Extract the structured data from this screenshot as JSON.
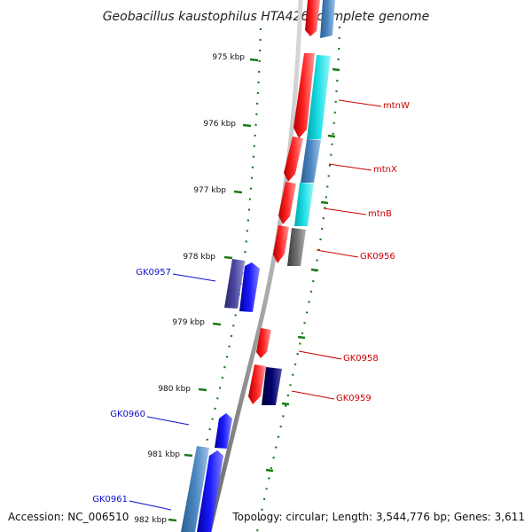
{
  "title": "Geobacillus kaustophilus HTA426, complete genome",
  "accession": "Accession: NC_006510",
  "topology": "Topology: circular; Length: 3,544,776 bp; Genes: 3,611",
  "colors": {
    "forward_gene": "#ff0000",
    "reverse_gene": "#0000ff",
    "tick": "#1a7a1a",
    "red_label": "#cc0000",
    "blue_label": "#1010cc"
  },
  "kbp_ticks": [
    {
      "label": "975 kbp"
    },
    {
      "label": "976 kbp"
    },
    {
      "label": "977 kbp"
    },
    {
      "label": "978 kbp"
    },
    {
      "label": "979 kbp"
    },
    {
      "label": "980 kbp"
    },
    {
      "label": "981 kbp"
    },
    {
      "label": "982 kbp"
    }
  ],
  "gene_labels": [
    {
      "text": "mtnW",
      "strand": "forward"
    },
    {
      "text": "mtnX",
      "strand": "forward"
    },
    {
      "text": "mtnB",
      "strand": "forward"
    },
    {
      "text": "GK0956",
      "strand": "forward"
    },
    {
      "text": "GK0957",
      "strand": "reverse"
    },
    {
      "text": "GK0958",
      "strand": "forward"
    },
    {
      "text": "GK0959",
      "strand": "forward"
    },
    {
      "text": "GK0960",
      "strand": "reverse"
    },
    {
      "text": "GK0961",
      "strand": "reverse"
    }
  ]
}
